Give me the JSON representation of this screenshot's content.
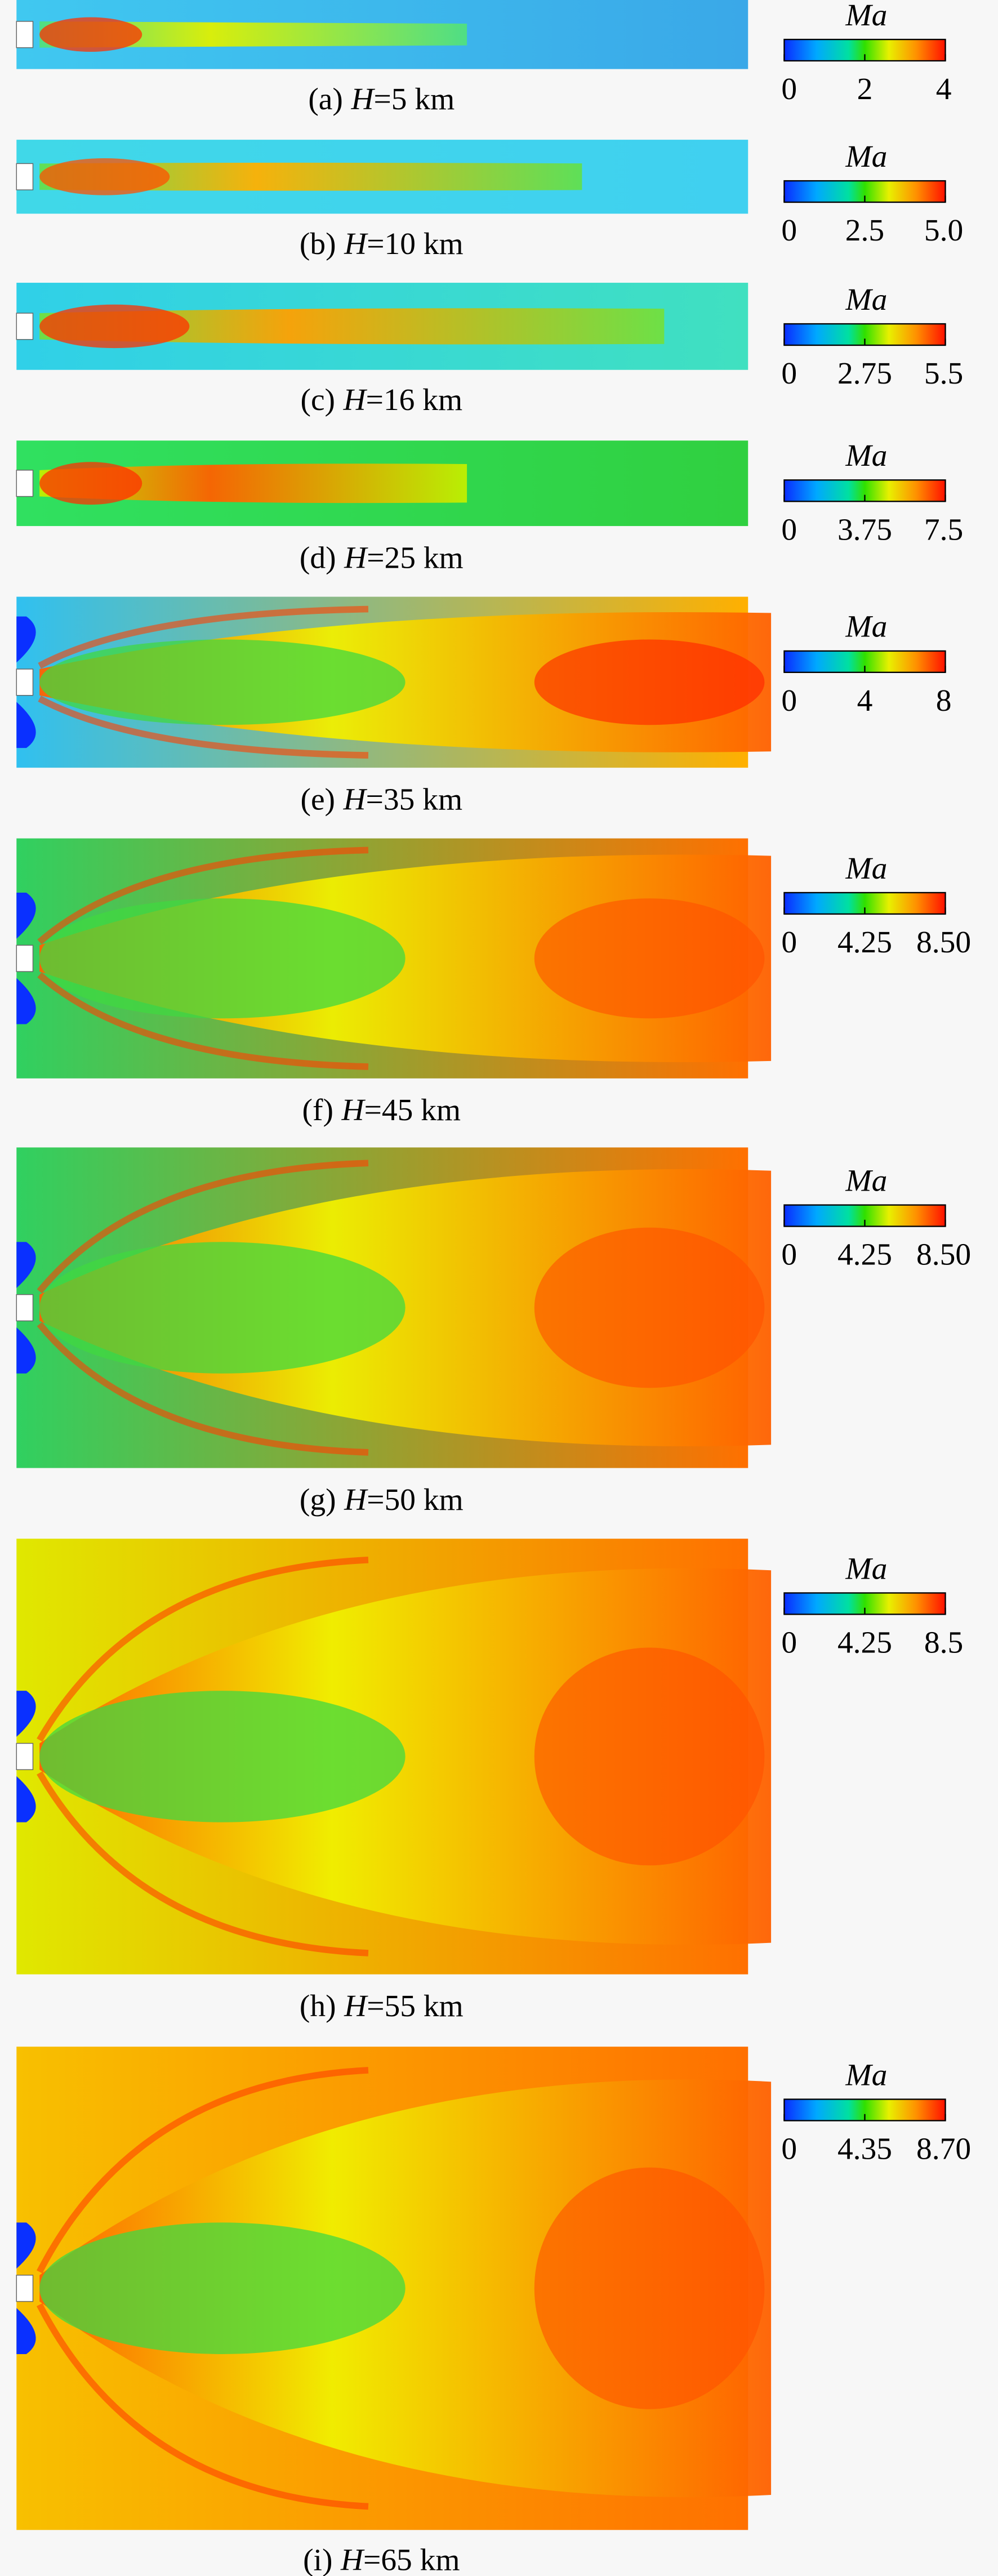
{
  "panels": [
    {
      "label": "(a)",
      "variable": "H",
      "value": "=5 km",
      "colorbar": {
        "title": "Ma",
        "ticks": [
          "0",
          "2",
          "4"
        ]
      }
    },
    {
      "label": "(b)",
      "variable": "H",
      "value": "=10 km",
      "colorbar": {
        "title": "Ma",
        "ticks": [
          "0",
          "2.5",
          "5.0"
        ]
      }
    },
    {
      "label": "(c)",
      "variable": "H",
      "value": "=16 km",
      "colorbar": {
        "title": "Ma",
        "ticks": [
          "0",
          "2.75",
          "5.5"
        ]
      }
    },
    {
      "label": "(d)",
      "variable": "H",
      "value": "=25 km",
      "colorbar": {
        "title": "Ma",
        "ticks": [
          "0",
          "3.75",
          "7.5"
        ]
      }
    },
    {
      "label": "(e)",
      "variable": "H",
      "value": "=35 km",
      "colorbar": {
        "title": "Ma",
        "ticks": [
          "0",
          "4",
          "8"
        ]
      }
    },
    {
      "label": "(f)",
      "variable": "H",
      "value": "=45 km",
      "colorbar": {
        "title": "Ma",
        "ticks": [
          "0",
          "4.25",
          "8.50"
        ]
      }
    },
    {
      "label": "(g)",
      "variable": "H",
      "value": "=50 km",
      "colorbar": {
        "title": "Ma",
        "ticks": [
          "0",
          "4.25",
          "8.50"
        ]
      }
    },
    {
      "label": "(h)",
      "variable": "H",
      "value": "=55 km",
      "colorbar": {
        "title": "Ma",
        "ticks": [
          "0",
          "4.25",
          "8.5"
        ]
      }
    },
    {
      "label": "(i)",
      "variable": "H",
      "value": "=65 km",
      "colorbar": {
        "title": "Ma",
        "ticks": [
          "0",
          "4.35",
          "8.70"
        ]
      }
    }
  ]
}
